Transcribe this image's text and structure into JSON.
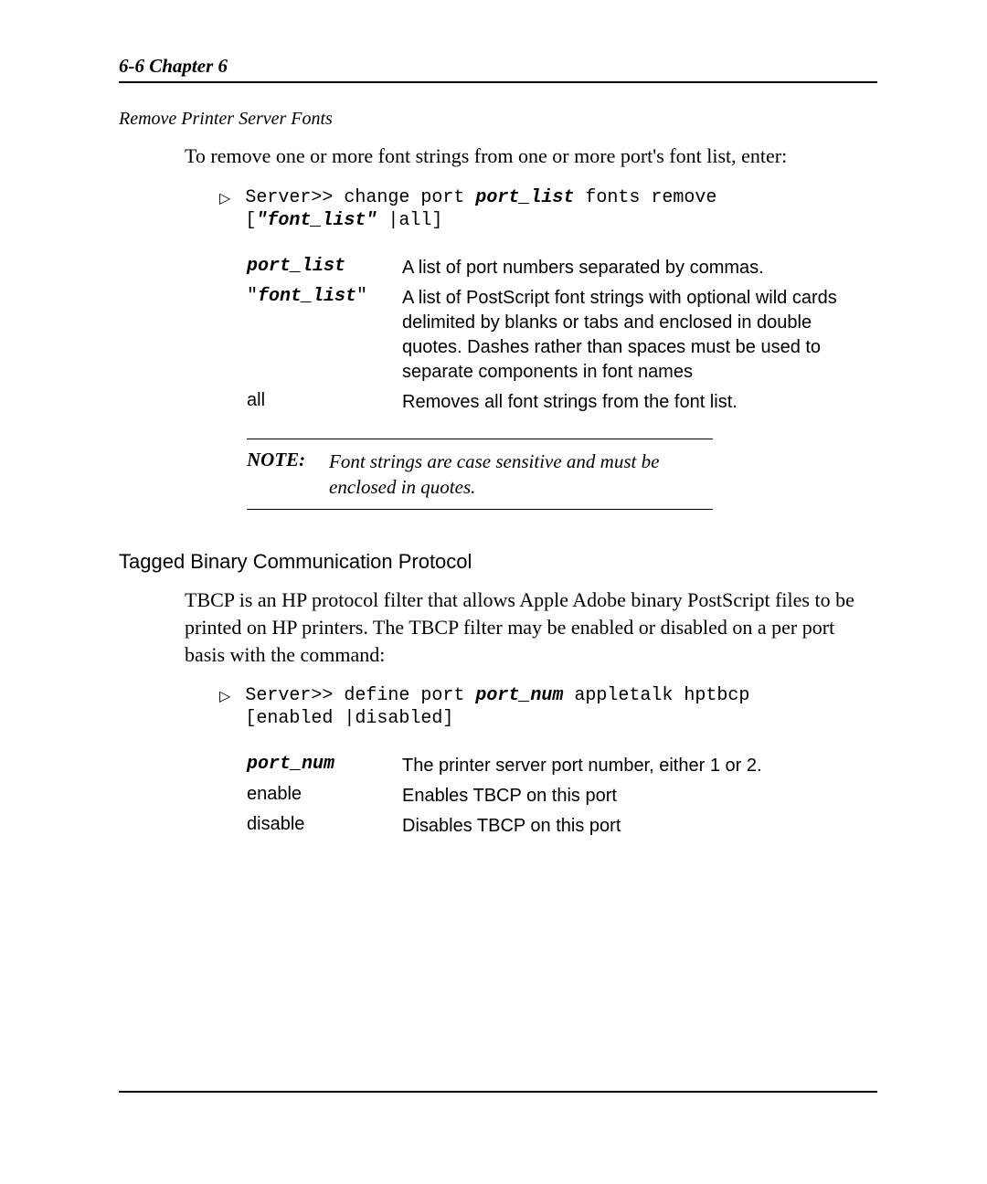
{
  "header": {
    "text": "6-6  Chapter 6"
  },
  "section1": {
    "title": "Remove Printer Server Fonts",
    "intro": "To remove one or more font strings from one or more port's font list, enter:",
    "cmd": {
      "prefix": "Server>> change port ",
      "param1": "port_list",
      "mid": " fonts remove",
      "line2_open": "[",
      "line2_q1": "\"font_list\"",
      "line2_pipe": " |",
      "line2_all": "all",
      "line2_close": "]"
    },
    "params": [
      {
        "term_bi": "port_list",
        "desc": "A list of port numbers separated by commas."
      },
      {
        "term_quoted_bi": "font_list",
        "desc": "A list of PostScript font strings with optional wild cards delimited by blanks or tabs and enclosed in double quotes. Dashes rather than spaces must be used to separate components in font names"
      },
      {
        "term_plain": "all",
        "desc": "Removes all font strings from the font list."
      }
    ],
    "note": {
      "label": "NOTE:",
      "text": "Font strings are case sensitive and must be enclosed in quotes."
    }
  },
  "section2": {
    "title": "Tagged Binary Communication Protocol",
    "intro": "TBCP is an HP protocol filter that allows Apple Adobe binary PostScript files to be printed on HP printers.  The TBCP filter may be enabled or disabled on a per port basis with the command:",
    "cmd": {
      "prefix": "Server>> define port ",
      "param1": "port_num",
      "mid": " appletalk hptbcp",
      "line2": "[enabled |disabled]"
    },
    "params": [
      {
        "term_bi": "port_num",
        "desc": "The printer server port number, either 1 or 2."
      },
      {
        "term_plain": "enable",
        "desc": "Enables TBCP on this port"
      },
      {
        "term_plain": "disable",
        "desc": "Disables TBCP on this port"
      }
    ]
  },
  "glyphs": {
    "triangle": "▷"
  }
}
